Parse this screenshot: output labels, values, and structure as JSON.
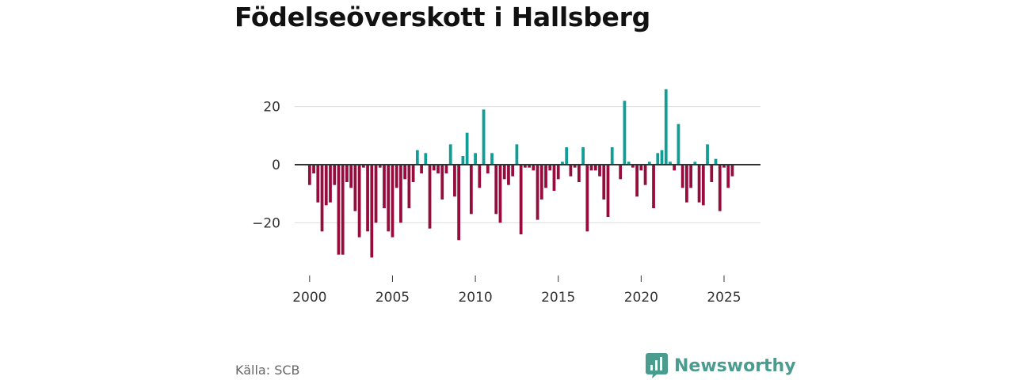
{
  "title": "Födelseöverskott i Hallsberg",
  "source": "Källa: SCB",
  "brand": {
    "name": "Newsworthy",
    "icon": "newsworthy-logo-icon",
    "color": "#4a9d8e"
  },
  "colors": {
    "positive": "#109d95",
    "negative": "#960c3c",
    "grid": "#dddddd",
    "zero": "#333333"
  },
  "chart_data": {
    "type": "bar",
    "title": "Födelseöverskott i Hallsberg",
    "xlabel": "",
    "ylabel": "",
    "xlim": [
      1999.1,
      2027.2
    ],
    "ylim": [
      -36,
      30
    ],
    "yticks": [
      -20,
      0,
      20
    ],
    "ytick_labels": [
      "−20",
      "0",
      "20"
    ],
    "xticks": [
      2000,
      2005,
      2010,
      2015,
      2020,
      2025
    ],
    "xtick_labels": [
      "2000",
      "2005",
      "2010",
      "2015",
      "2020",
      "2025"
    ],
    "grid": true,
    "legend": "none",
    "start": 2000,
    "period": "quarter",
    "values": [
      -7,
      -3,
      -13,
      -23,
      -14,
      -13,
      -7,
      -31,
      -31,
      -6,
      -8,
      -16,
      -25,
      -1,
      -23,
      -32,
      -20,
      -1,
      -15,
      -23,
      -25,
      -8,
      -20,
      -5,
      -15,
      -6,
      5,
      -3,
      4,
      -22,
      -2,
      -3,
      -12,
      -3,
      7,
      -11,
      -26,
      3,
      11,
      -17,
      4,
      -8,
      19,
      -3,
      4,
      -17,
      -20,
      -5,
      -7,
      -4,
      7,
      -24,
      -1,
      -1,
      -2,
      -19,
      -12,
      -8,
      -2,
      -9,
      -5,
      1,
      6,
      -4,
      -1,
      -6,
      6,
      -23,
      -2,
      -2,
      -4,
      -12,
      -18,
      6,
      0,
      -5,
      22,
      1,
      -1,
      -11,
      -2,
      -7,
      1,
      -15,
      4,
      5,
      26,
      1,
      -2,
      14,
      -8,
      -13,
      -8,
      1,
      -13,
      -14,
      7,
      -6,
      2,
      -16,
      -1,
      -8,
      -4
    ]
  }
}
